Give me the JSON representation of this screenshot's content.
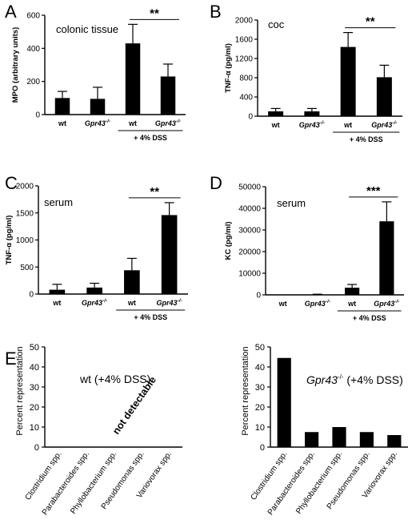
{
  "chart_data": [
    {
      "panel": "A",
      "type": "bar",
      "title": "colonic tissue",
      "ylabel": "MPO (arbitrary units)",
      "ylim": [
        0,
        600
      ],
      "yticks": [
        0,
        200,
        400,
        600
      ],
      "categories": [
        "wt",
        "Gpr43",
        "wt",
        "Gpr43"
      ],
      "category_superscripts": [
        "",
        "-/-",
        "",
        "-/-"
      ],
      "values": [
        100,
        95,
        430,
        230
      ],
      "errors": [
        40,
        70,
        115,
        75
      ],
      "group_label": "+ 4% DSS",
      "group_range": [
        2,
        3
      ],
      "significance": "**",
      "significance_between": [
        2,
        3
      ]
    },
    {
      "panel": "B",
      "type": "bar",
      "title": "coc",
      "ylabel": "TNF-α (pg/ml)",
      "ylim": [
        0,
        2000
      ],
      "yticks": [
        0,
        400,
        800,
        1200,
        1600,
        2000
      ],
      "categories": [
        "wt",
        "Gpr43",
        "wt",
        "Gpr43"
      ],
      "category_superscripts": [
        "",
        "-/-",
        "",
        "-/-"
      ],
      "values": [
        100,
        100,
        1440,
        810
      ],
      "errors": [
        60,
        60,
        300,
        250
      ],
      "group_label": "+ 4% DSS",
      "group_range": [
        2,
        3
      ],
      "significance": "**",
      "significance_between": [
        2,
        3
      ]
    },
    {
      "panel": "C",
      "type": "bar",
      "title": "serum",
      "ylabel": "TNF-α (pg/ml)",
      "ylim": [
        0,
        2000
      ],
      "yticks": [
        0,
        500,
        1000,
        1500,
        2000
      ],
      "categories": [
        "wt",
        "Gpr43",
        "wt",
        "Gpr43"
      ],
      "category_superscripts": [
        "",
        "-/-",
        "",
        "-/-"
      ],
      "values": [
        80,
        120,
        440,
        1460
      ],
      "errors": [
        100,
        80,
        220,
        230
      ],
      "group_label": "+ 4% DSS",
      "group_range": [
        2,
        3
      ],
      "significance": "**",
      "significance_between": [
        2,
        3
      ]
    },
    {
      "panel": "D",
      "type": "bar",
      "title": "serum",
      "ylabel": "KC (pg/ml)",
      "ylim": [
        0,
        50000
      ],
      "yticks": [
        0,
        10000,
        20000,
        30000,
        40000,
        50000
      ],
      "categories": [
        "wt",
        "Gpr43",
        "wt",
        "Gpr43"
      ],
      "category_superscripts": [
        "",
        "-/-",
        "",
        "-/-"
      ],
      "values": [
        0,
        100,
        3300,
        34000
      ],
      "errors": [
        0,
        200,
        1500,
        9000
      ],
      "group_label": "+ 4% DSS",
      "group_range": [
        2,
        3
      ],
      "significance": "***",
      "significance_between": [
        2,
        3
      ]
    },
    {
      "panel": "E",
      "type": "bar",
      "title": "wt (+4% DSS)",
      "ylabel": "Percent representation",
      "ylim": [
        0,
        50
      ],
      "yticks": [
        0,
        10,
        20,
        30,
        40,
        50
      ],
      "categories": [
        "Clostridium spp.",
        "Parabacteroides spp.",
        "Phyllobacterium spp.",
        "Pseudomonas spp.",
        "Variovorax spp."
      ],
      "values": [
        0,
        0,
        0,
        0,
        0
      ],
      "annotation": "not detectable"
    },
    {
      "type": "bar",
      "title": "Gpr43",
      "title_superscript": "-/-",
      "title_suffix": " (+4% DSS)",
      "ylabel": "Percent representation",
      "ylim": [
        0,
        50
      ],
      "yticks": [
        0,
        10,
        20,
        30,
        40,
        50
      ],
      "categories": [
        "Clostridium spp.",
        "Parabacteroides spp.",
        "Phyllobacterium spp.",
        "Pseudomonas spp.",
        "Variovorax spp."
      ],
      "values": [
        44.5,
        7.5,
        10,
        7.5,
        6
      ]
    }
  ]
}
